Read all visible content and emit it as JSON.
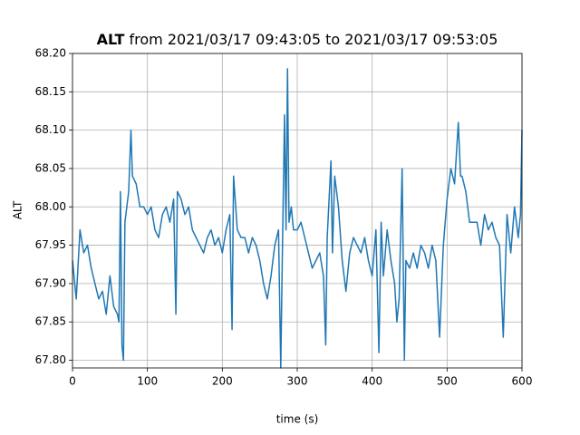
{
  "chart_data": {
    "type": "line",
    "title_variable": "ALT",
    "title": "from 2021/03/17 09:43:05 to 2021/03/17 09:53:05",
    "xlabel": "time (s)",
    "ylabel": "ALT",
    "xlim": [
      0,
      600
    ],
    "xticks": [
      0,
      100,
      200,
      300,
      400,
      500,
      600
    ],
    "ylim": [
      67.79,
      68.2
    ],
    "yticks": [
      {
        "value": 67.8,
        "label": "67.80"
      },
      67.85,
      {
        "value": 67.9,
        "label": "67.90"
      },
      67.95,
      {
        "value": 68.0,
        "label": "68.00"
      },
      68.05,
      {
        "value": 68.1,
        "label": "68.10"
      },
      68.15,
      {
        "value": 68.2,
        "label": "68.20"
      }
    ],
    "grid": true,
    "x": [
      0,
      5,
      10,
      15,
      20,
      25,
      30,
      35,
      40,
      45,
      50,
      55,
      60,
      62,
      64,
      66,
      68,
      70,
      75,
      78,
      80,
      85,
      90,
      95,
      100,
      105,
      110,
      115,
      120,
      125,
      130,
      135,
      138,
      140,
      145,
      150,
      155,
      160,
      165,
      170,
      175,
      180,
      185,
      190,
      195,
      200,
      205,
      210,
      213,
      215,
      220,
      225,
      230,
      235,
      240,
      245,
      250,
      255,
      260,
      265,
      270,
      275,
      278,
      280,
      283,
      285,
      287,
      289,
      292,
      295,
      300,
      305,
      310,
      315,
      320,
      325,
      330,
      335,
      338,
      340,
      345,
      347,
      350,
      355,
      360,
      365,
      370,
      375,
      380,
      385,
      390,
      395,
      400,
      405,
      409,
      412,
      415,
      420,
      425,
      430,
      433,
      436,
      440,
      443,
      445,
      450,
      455,
      460,
      465,
      470,
      475,
      480,
      485,
      490,
      495,
      500,
      505,
      510,
      515,
      518,
      520,
      525,
      530,
      535,
      540,
      545,
      550,
      555,
      560,
      565,
      570,
      575,
      580,
      585,
      590,
      595,
      598,
      600
    ],
    "series": [
      {
        "name": "ALT",
        "color": "#1f77b4",
        "values": [
          67.93,
          67.88,
          67.97,
          67.94,
          67.95,
          67.92,
          67.9,
          67.88,
          67.89,
          67.86,
          67.91,
          67.87,
          67.86,
          67.85,
          68.02,
          67.82,
          67.8,
          67.98,
          68.02,
          68.1,
          68.04,
          68.03,
          68.0,
          68.0,
          67.99,
          68.0,
          67.97,
          67.96,
          67.99,
          68.0,
          67.98,
          68.01,
          67.86,
          68.02,
          68.01,
          67.99,
          68.0,
          67.97,
          67.96,
          67.95,
          67.94,
          67.96,
          67.97,
          67.95,
          67.96,
          67.94,
          67.97,
          67.99,
          67.84,
          68.04,
          67.97,
          67.96,
          67.96,
          67.94,
          67.96,
          67.95,
          67.93,
          67.9,
          67.88,
          67.91,
          67.95,
          67.97,
          67.79,
          67.93,
          68.12,
          67.97,
          68.18,
          67.98,
          68.0,
          67.97,
          67.97,
          67.98,
          67.96,
          67.94,
          67.92,
          67.93,
          67.94,
          67.91,
          67.82,
          67.96,
          68.06,
          67.94,
          68.04,
          68.0,
          67.93,
          67.89,
          67.94,
          67.96,
          67.95,
          67.94,
          67.96,
          67.93,
          67.91,
          67.97,
          67.81,
          67.98,
          67.91,
          67.97,
          67.93,
          67.9,
          67.85,
          67.88,
          68.05,
          67.8,
          67.93,
          67.92,
          67.94,
          67.92,
          67.95,
          67.94,
          67.92,
          67.95,
          67.93,
          67.83,
          67.95,
          68.01,
          68.05,
          68.03,
          68.11,
          68.04,
          68.04,
          68.02,
          67.98,
          67.98,
          67.98,
          67.95,
          67.99,
          67.97,
          67.98,
          67.96,
          67.95,
          67.83,
          67.99,
          67.94,
          68.0,
          67.96,
          67.99,
          68.1
        ]
      }
    ]
  }
}
